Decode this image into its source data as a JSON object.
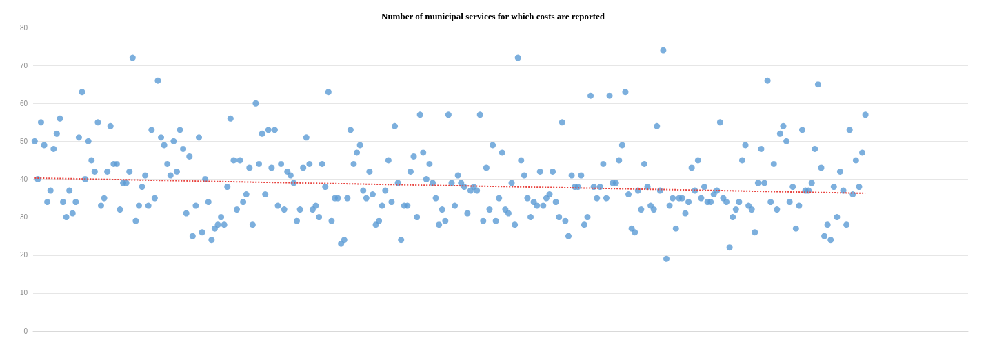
{
  "chart_data": {
    "type": "scatter",
    "title": "Number of municipal services for which costs are reported",
    "ylim": [
      0,
      80
    ],
    "yticks": [
      0,
      10,
      20,
      30,
      40,
      50,
      60,
      70,
      80
    ],
    "grid": "y",
    "tick_labels": "y",
    "categories": [
      null,
      null,
      null,
      null,
      null,
      null,
      null,
      null,
      null,
      null,
      null,
      null,
      null,
      null,
      null,
      null,
      null,
      null,
      null,
      null,
      null,
      null,
      null,
      null,
      null,
      null,
      null,
      null,
      null,
      null,
      null,
      null,
      null,
      null,
      null,
      null,
      null,
      null,
      null,
      null,
      null,
      null,
      null,
      null,
      null,
      null,
      null,
      null,
      null,
      null,
      null,
      null,
      null,
      null,
      null,
      null,
      null,
      null,
      null,
      null,
      null,
      null,
      null,
      null,
      null,
      null,
      null,
      null,
      null,
      null,
      null,
      null,
      null,
      null,
      null,
      null,
      null,
      null,
      null,
      null,
      null,
      null,
      null,
      null,
      null,
      null,
      null,
      null,
      null,
      null,
      null,
      null,
      null,
      null,
      null,
      null,
      null,
      null,
      null,
      null,
      null,
      null,
      null,
      null,
      null,
      null,
      null,
      null,
      null,
      null,
      null,
      null,
      null,
      null,
      null,
      null,
      null,
      null,
      null,
      null,
      null,
      null,
      null,
      null,
      null,
      null,
      null,
      null,
      null,
      null,
      null,
      null,
      null,
      null,
      null,
      null,
      null,
      null,
      null,
      null,
      null,
      null,
      null,
      null,
      null,
      null,
      null,
      null,
      null,
      null,
      null,
      null,
      null,
      null,
      null,
      null,
      null,
      null,
      null,
      null,
      null,
      null,
      null,
      null,
      null,
      null,
      null,
      null,
      null,
      null,
      null,
      null,
      null,
      null,
      null,
      null,
      null,
      null,
      null,
      null,
      null,
      null,
      null,
      null,
      null,
      null,
      null,
      null,
      null,
      null,
      null,
      null,
      null,
      null,
      null,
      null,
      null,
      null,
      null,
      null,
      null,
      null,
      null,
      null,
      null,
      null,
      null,
      null,
      null,
      null,
      null,
      null,
      null,
      null,
      null,
      null,
      null,
      null,
      null,
      null,
      null,
      null,
      null,
      null,
      null,
      null,
      null,
      null,
      null,
      null,
      null,
      null,
      null,
      null,
      null,
      null,
      null,
      null,
      null,
      null,
      null,
      null,
      null,
      null,
      null,
      null,
      null,
      null,
      null,
      null,
      null,
      null,
      null,
      null,
      null,
      null,
      null,
      null,
      null,
      null,
      null,
      null,
      null,
      null,
      null,
      null,
      null,
      null,
      null,
      null,
      null,
      null,
      null,
      null,
      null,
      null,
      null,
      null,
      null,
      null,
      null,
      null,
      null,
      null,
      null,
      null,
      null,
      null,
      null,
      null,
      null,
      null,
      null,
      null,
      null,
      null
    ],
    "series": [
      {
        "color": "#5b9bd5",
        "marker": "circle",
        "values": [
          50,
          40,
          55,
          49,
          34,
          37,
          48,
          52,
          56,
          34,
          30,
          37,
          31,
          34,
          51,
          63,
          40,
          50,
          45,
          42,
          55,
          33,
          35,
          42,
          54,
          44,
          44,
          32,
          39,
          39,
          42,
          72,
          29,
          33,
          38,
          41,
          33,
          53,
          35,
          66,
          51,
          49,
          44,
          41,
          50,
          42,
          53,
          48,
          31,
          46,
          25,
          33,
          51,
          26,
          40,
          34,
          24,
          27,
          28,
          30,
          28,
          38,
          56,
          45,
          32,
          45,
          34,
          36,
          43,
          28,
          60,
          44,
          52,
          36,
          53,
          43,
          53,
          33,
          44,
          32,
          42,
          41,
          39,
          29,
          32,
          43,
          51,
          44,
          32,
          33,
          30,
          44,
          38,
          63,
          29,
          35,
          35,
          23,
          24,
          35,
          53,
          44,
          47,
          49,
          37,
          35,
          42,
          36,
          28,
          29,
          33,
          37,
          45,
          34,
          54,
          39,
          24,
          33,
          33,
          42,
          46,
          30,
          57,
          47,
          40,
          44,
          39,
          35,
          28,
          32,
          29,
          57,
          39,
          33,
          41,
          39,
          38,
          31,
          37,
          38,
          37,
          57,
          29,
          43,
          32,
          49,
          29,
          35,
          47,
          32,
          31,
          39,
          28,
          72,
          45,
          41,
          35,
          30,
          34,
          33,
          42,
          33,
          35,
          36,
          42,
          34,
          30,
          55,
          29,
          25,
          41,
          38,
          38,
          41,
          28,
          30,
          62,
          38,
          35,
          38,
          44,
          35,
          62,
          39,
          39,
          45,
          49,
          63,
          36,
          27,
          26,
          37,
          32,
          44,
          38,
          33,
          32,
          54,
          37,
          74,
          19,
          33,
          35,
          27,
          35,
          35,
          31,
          34,
          43,
          37,
          45,
          35,
          38,
          34,
          34,
          36,
          37,
          55,
          35,
          34,
          22,
          30,
          32,
          34,
          45,
          49,
          33,
          32,
          26,
          39,
          48,
          39,
          66,
          34,
          44,
          32,
          52,
          54,
          50,
          34,
          38,
          27,
          33,
          53,
          37,
          37,
          39,
          48,
          65,
          43,
          25,
          28,
          24,
          38,
          30,
          42,
          37,
          28,
          53,
          36,
          45,
          38,
          47,
          57,
          null,
          null,
          null,
          null,
          null,
          null,
          null,
          null,
          null,
          null,
          null,
          null,
          null,
          null,
          null,
          null,
          null,
          null,
          null,
          null,
          null,
          null,
          null,
          null,
          null,
          null,
          null,
          null,
          null,
          null,
          null,
          null
        ]
      },
      {
        "type": "line",
        "color": "#e8413c",
        "line_style": "dotted",
        "marker": "none",
        "values": [
          40.3,
          null,
          null,
          null,
          null,
          null,
          null,
          null,
          null,
          null,
          null,
          null,
          null,
          null,
          null,
          null,
          null,
          null,
          null,
          null,
          null,
          null,
          null,
          null,
          null,
          null,
          null,
          null,
          null,
          null,
          null,
          null,
          null,
          null,
          null,
          null,
          null,
          null,
          null,
          null,
          null,
          null,
          null,
          null,
          null,
          null,
          null,
          null,
          null,
          null,
          null,
          null,
          null,
          null,
          null,
          null,
          null,
          null,
          null,
          null,
          null,
          null,
          null,
          null,
          null,
          null,
          null,
          null,
          null,
          null,
          null,
          null,
          null,
          null,
          null,
          null,
          null,
          null,
          null,
          null,
          null,
          null,
          null,
          null,
          null,
          null,
          null,
          null,
          null,
          null,
          null,
          null,
          null,
          null,
          null,
          null,
          null,
          null,
          null,
          null,
          null,
          null,
          null,
          null,
          null,
          null,
          null,
          null,
          null,
          null,
          null,
          null,
          null,
          null,
          null,
          null,
          null,
          null,
          null,
          null,
          null,
          null,
          null,
          null,
          null,
          null,
          null,
          null,
          null,
          null,
          null,
          null,
          null,
          null,
          null,
          null,
          null,
          null,
          null,
          null,
          null,
          null,
          null,
          null,
          null,
          null,
          null,
          null,
          null,
          null,
          null,
          null,
          null,
          null,
          null,
          null,
          null,
          null,
          null,
          null,
          null,
          null,
          null,
          null,
          null,
          null,
          null,
          null,
          null,
          null,
          null,
          null,
          null,
          null,
          null,
          null,
          null,
          null,
          null,
          null,
          null,
          null,
          null,
          null,
          null,
          null,
          null,
          null,
          null,
          null,
          null,
          null,
          null,
          null,
          null,
          null,
          null,
          null,
          null,
          null,
          null,
          null,
          null,
          null,
          null,
          null,
          null,
          null,
          null,
          null,
          null,
          null,
          null,
          null,
          null,
          null,
          null,
          null,
          null,
          null,
          null,
          null,
          null,
          null,
          null,
          null,
          null,
          null,
          null,
          null,
          null,
          null,
          null,
          null,
          null,
          null,
          null,
          null,
          null,
          null,
          null,
          null,
          null,
          null,
          null,
          null,
          null,
          null,
          null,
          null,
          null,
          null,
          null,
          null,
          null,
          null,
          null,
          null,
          null,
          null,
          null,
          null,
          null,
          36.3,
          null,
          null,
          null,
          null,
          null,
          null,
          null,
          null,
          null,
          null,
          null,
          null,
          null,
          null,
          null,
          null,
          null,
          null,
          null,
          null,
          null,
          null,
          null,
          null,
          null,
          null,
          null,
          null,
          null,
          null,
          null,
          null
        ]
      }
    ]
  }
}
